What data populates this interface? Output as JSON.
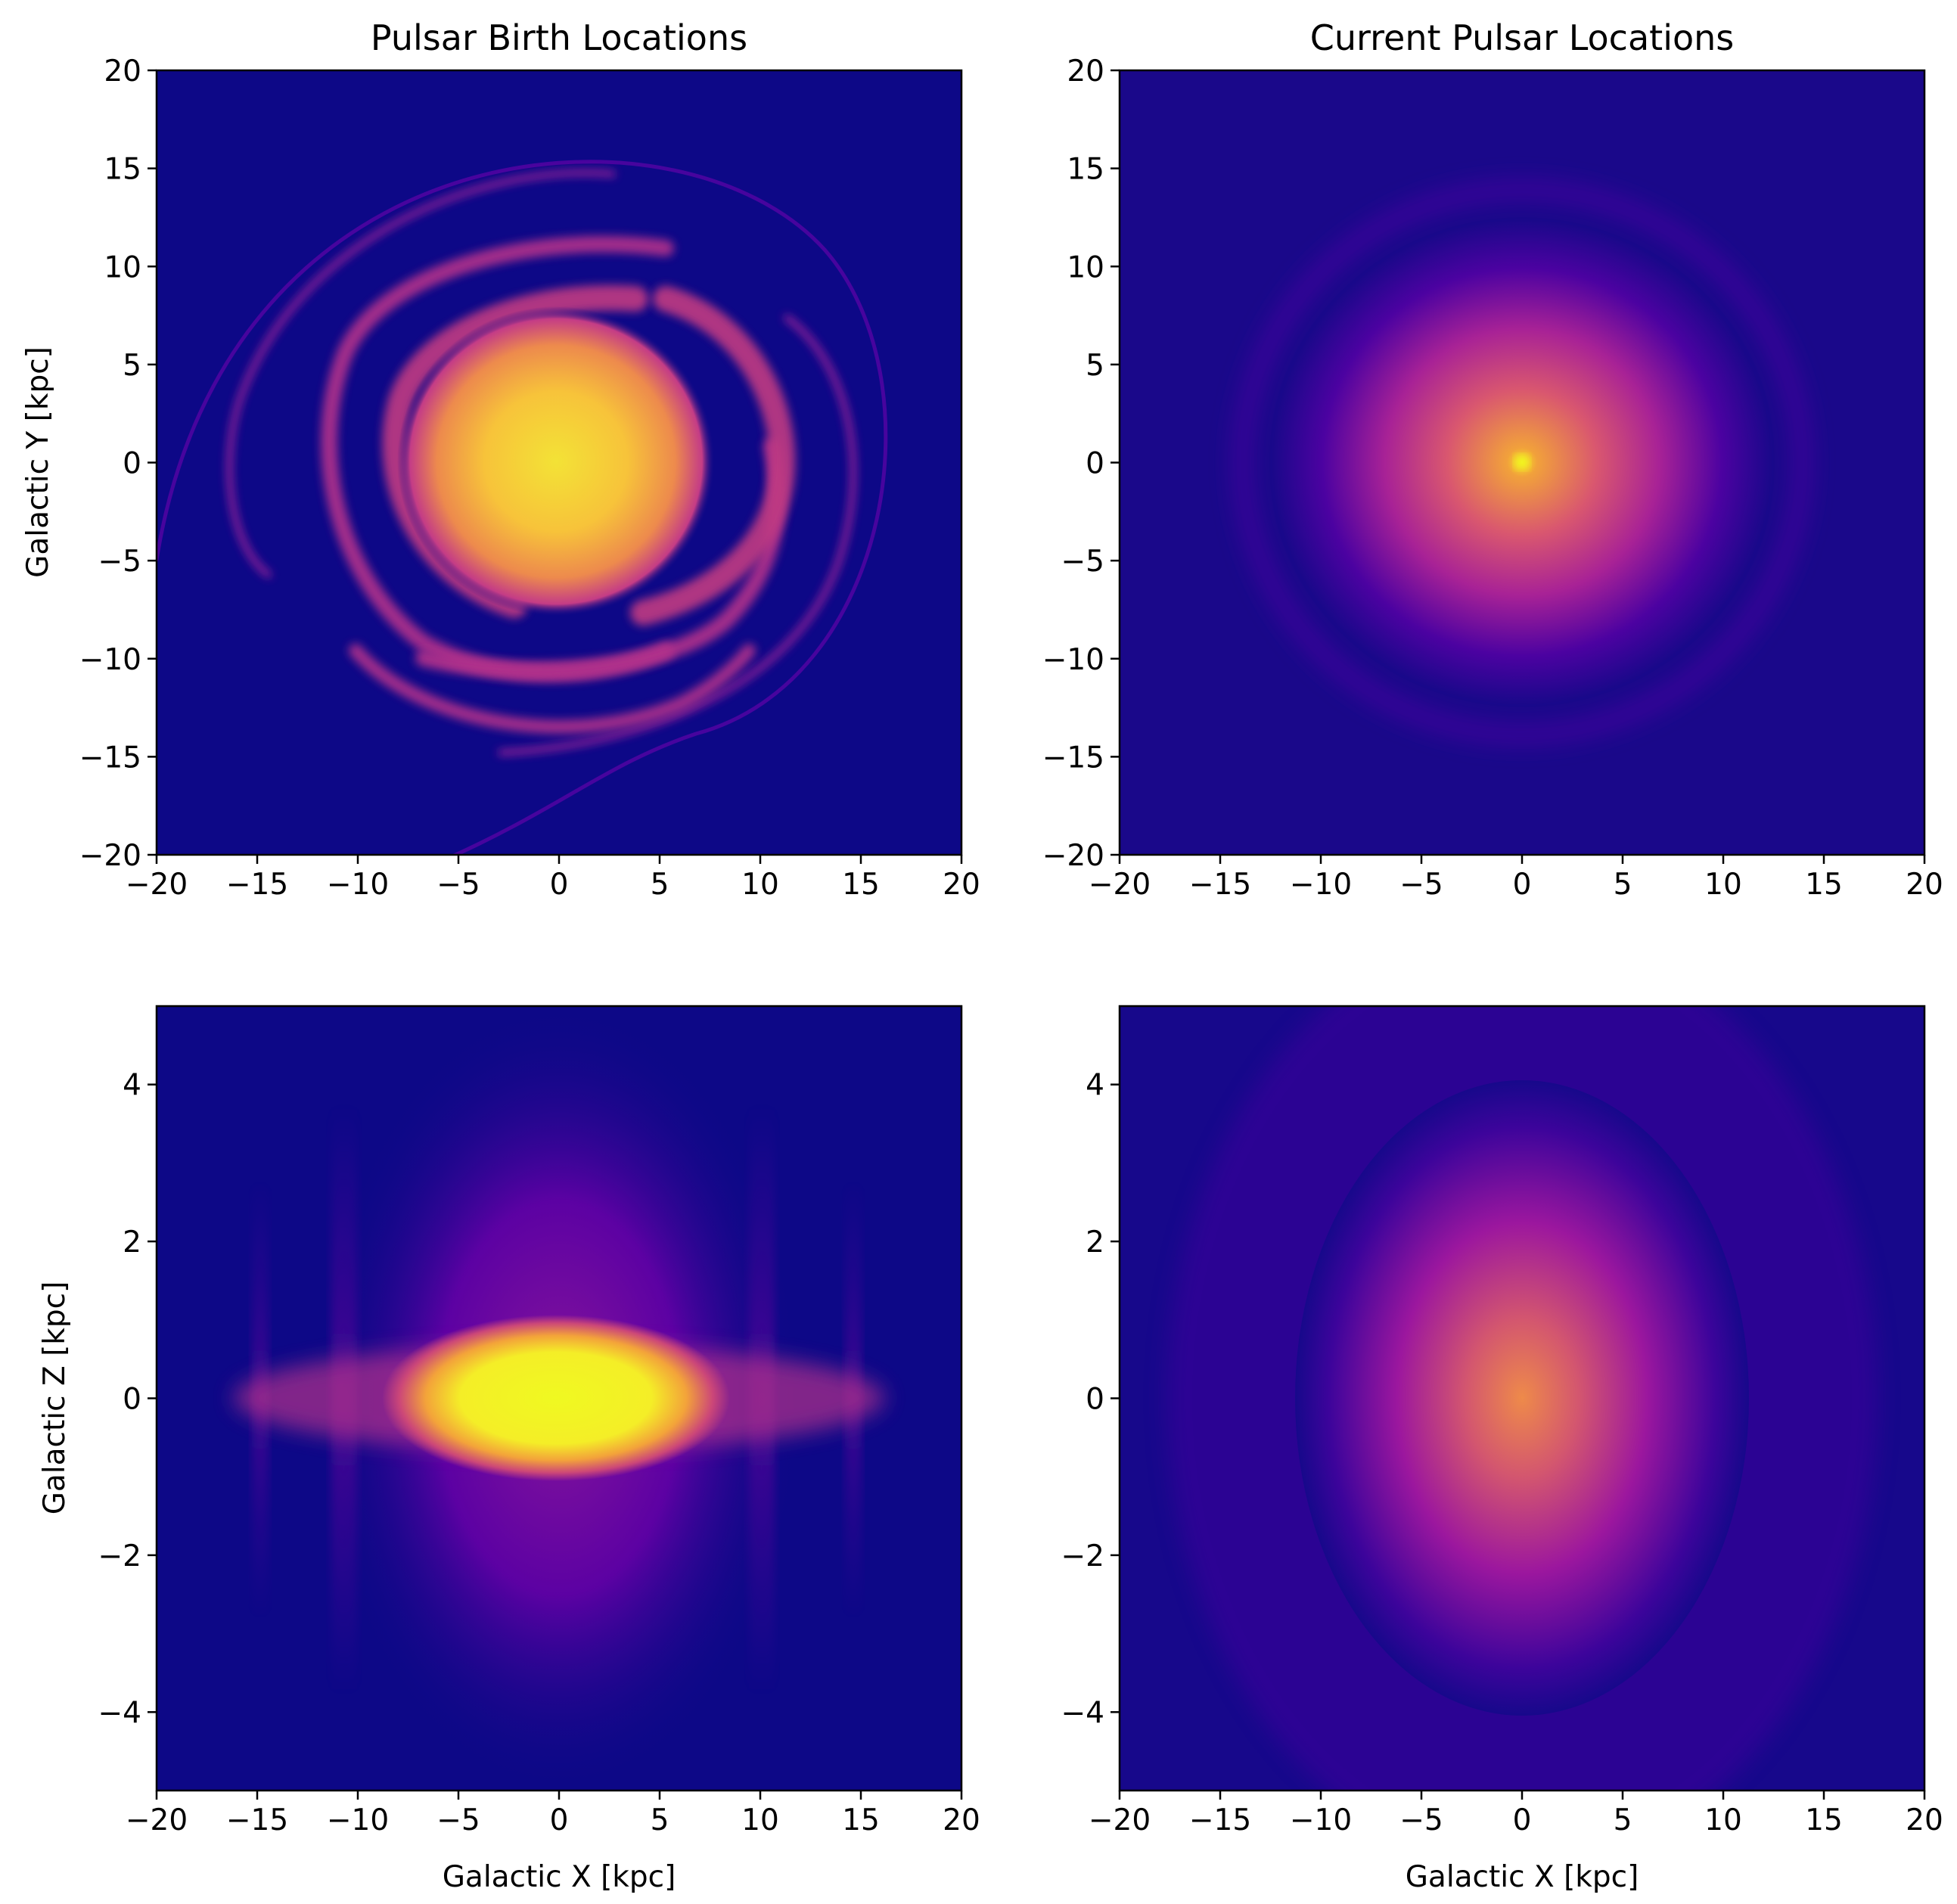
{
  "figure": {
    "colormap": "plasma",
    "colors": {
      "background": "#0d0887",
      "mid": "#9c179e",
      "high": "#ed7953",
      "peak": "#f0f921"
    }
  },
  "chart_data": [
    {
      "type": "heatmap",
      "panel": "top-left",
      "title": "Pulsar Birth Locations",
      "xlabel": "",
      "ylabel": "Galactic Y [kpc]",
      "xlim": [
        -20,
        20
      ],
      "ylim": [
        -20,
        20
      ],
      "xticks": [
        -20,
        -15,
        -10,
        -5,
        0,
        5,
        10,
        15,
        20
      ],
      "yticks": [
        -20,
        -15,
        -10,
        -5,
        0,
        5,
        10,
        15,
        20
      ],
      "xtick_labels": [
        "−20",
        "−15",
        "−10",
        "−5",
        "0",
        "5",
        "10",
        "15",
        "20"
      ],
      "ytick_labels": [
        "−20",
        "−15",
        "−10",
        "−5",
        "0",
        "5",
        "10",
        "15",
        "20"
      ],
      "projection": "x-y",
      "features": {
        "central_bulge": {
          "center": [
            0,
            0
          ],
          "radius": 5.5
        },
        "spiral_arms": 4,
        "outer_arm_radius": 15
      }
    },
    {
      "type": "heatmap",
      "panel": "top-right",
      "title": "Current Pulsar Locations",
      "xlabel": "",
      "ylabel": "",
      "xlim": [
        -20,
        20
      ],
      "ylim": [
        -20,
        20
      ],
      "xticks": [
        -20,
        -15,
        -10,
        -5,
        0,
        5,
        10,
        15,
        20
      ],
      "yticks": [
        -20,
        -15,
        -10,
        -5,
        0,
        5,
        10,
        15,
        20
      ],
      "xtick_labels": [
        "−20",
        "−15",
        "−10",
        "−5",
        "0",
        "5",
        "10",
        "15",
        "20"
      ],
      "ytick_labels": [
        "−20",
        "−15",
        "−10",
        "−5",
        "0",
        "5",
        "10",
        "15",
        "20"
      ],
      "projection": "x-y",
      "features": {
        "central_peak": {
          "center": [
            0,
            0
          ]
        },
        "diffuse_radius": 11
      }
    },
    {
      "type": "heatmap",
      "panel": "bottom-left",
      "title": "",
      "xlabel": "Galactic X [kpc]",
      "ylabel": "Galactic Z [kpc]",
      "xlim": [
        -20,
        20
      ],
      "ylim": [
        -5,
        5
      ],
      "xticks": [
        -20,
        -15,
        -10,
        -5,
        0,
        5,
        10,
        15,
        20
      ],
      "yticks": [
        -4,
        -2,
        0,
        2,
        4
      ],
      "xtick_labels": [
        "−20",
        "−15",
        "−10",
        "−5",
        "0",
        "5",
        "10",
        "15",
        "20"
      ],
      "ytick_labels": [
        "−4",
        "−2",
        "0",
        "2",
        "4"
      ],
      "projection": "x-z",
      "features": {
        "central_disk": {
          "center": [
            0,
            0
          ],
          "half_width": 6,
          "half_height": 0.7
        },
        "arm_bands_x": [
          -15,
          -11,
          11,
          15
        ]
      }
    },
    {
      "type": "heatmap",
      "panel": "bottom-right",
      "title": "",
      "xlabel": "Galactic X [kpc]",
      "ylabel": "",
      "xlim": [
        -20,
        20
      ],
      "ylim": [
        -5,
        5
      ],
      "xticks": [
        -20,
        -15,
        -10,
        -5,
        0,
        5,
        10,
        15,
        20
      ],
      "yticks": [
        -4,
        -2,
        0,
        2,
        4
      ],
      "xtick_labels": [
        "−20",
        "−15",
        "−10",
        "−5",
        "0",
        "5",
        "10",
        "15",
        "20"
      ],
      "ytick_labels": [
        "−4",
        "−2",
        "0",
        "2",
        "4"
      ],
      "projection": "x-z",
      "features": {
        "central_blob": {
          "center": [
            0,
            0
          ],
          "half_width": 6,
          "half_height": 1.5
        }
      }
    }
  ]
}
